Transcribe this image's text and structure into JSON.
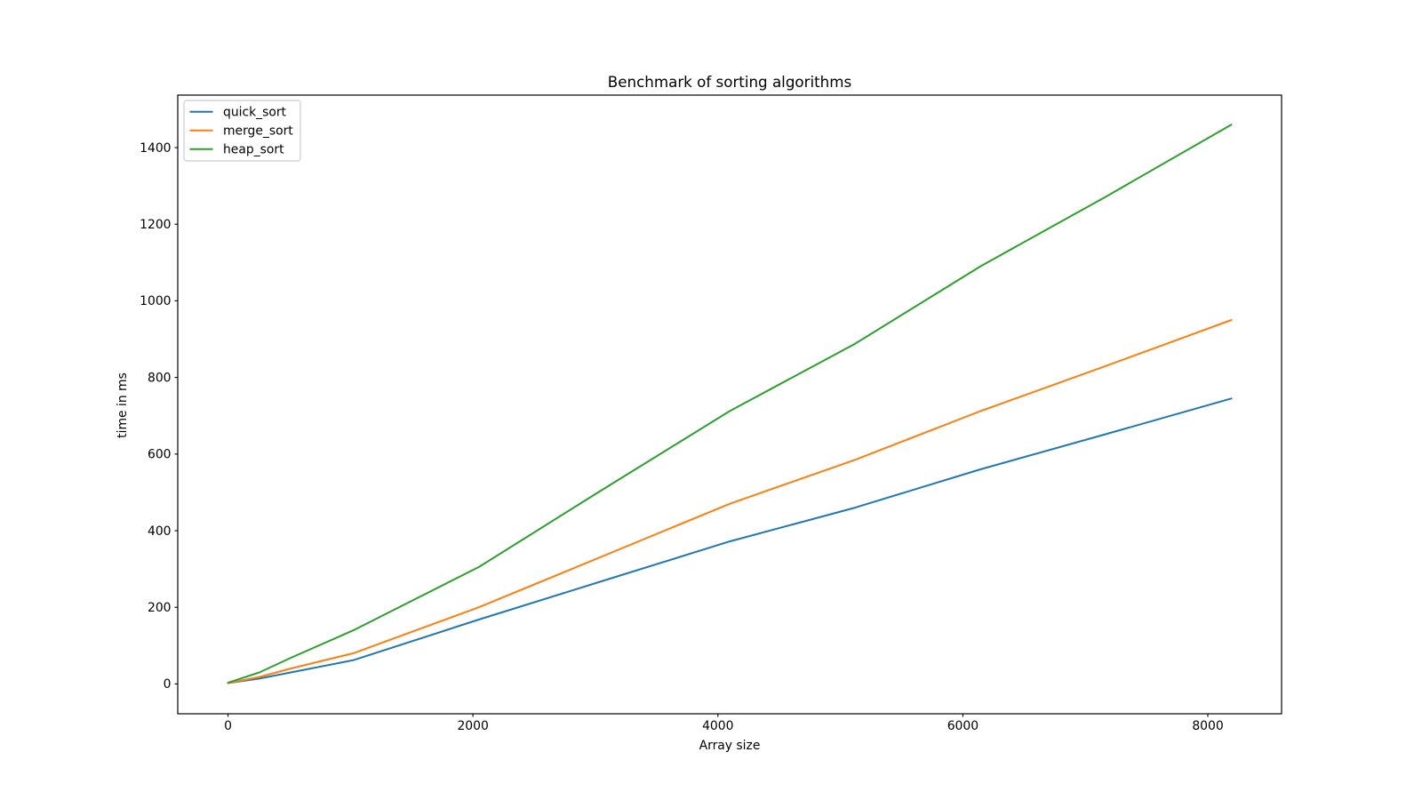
{
  "chart_data": {
    "type": "line",
    "title": "Benchmark of sorting algorithms",
    "xlabel": "Array size",
    "ylabel": "time in ms",
    "xlim": [
      -410,
      8602
    ],
    "ylim": [
      -78,
      1537
    ],
    "xticks": [
      0,
      2000,
      4000,
      6000,
      8000
    ],
    "yticks": [
      0,
      200,
      400,
      600,
      800,
      1000,
      1200,
      1400
    ],
    "grid": false,
    "legend_position": "upper left",
    "x": [
      0,
      256,
      512,
      1024,
      2048,
      3072,
      4096,
      5120,
      6144,
      7168,
      8192
    ],
    "series": [
      {
        "name": "quick_sort",
        "color": "#1f77b4",
        "values": [
          2,
          14,
          30,
          62,
          168,
          270,
          372,
          460,
          560,
          652,
          745
        ]
      },
      {
        "name": "merge_sort",
        "color": "#ff7f0e",
        "values": [
          2,
          18,
          40,
          80,
          200,
          335,
          470,
          585,
          712,
          830,
          950
        ]
      },
      {
        "name": "heap_sort",
        "color": "#2ca02c",
        "values": [
          3,
          30,
          68,
          140,
          305,
          510,
          712,
          888,
          1090,
          1272,
          1460
        ]
      }
    ]
  },
  "colors": {
    "background": "#ffffff",
    "axes": "#000000",
    "legend_border": "#cccccc"
  }
}
